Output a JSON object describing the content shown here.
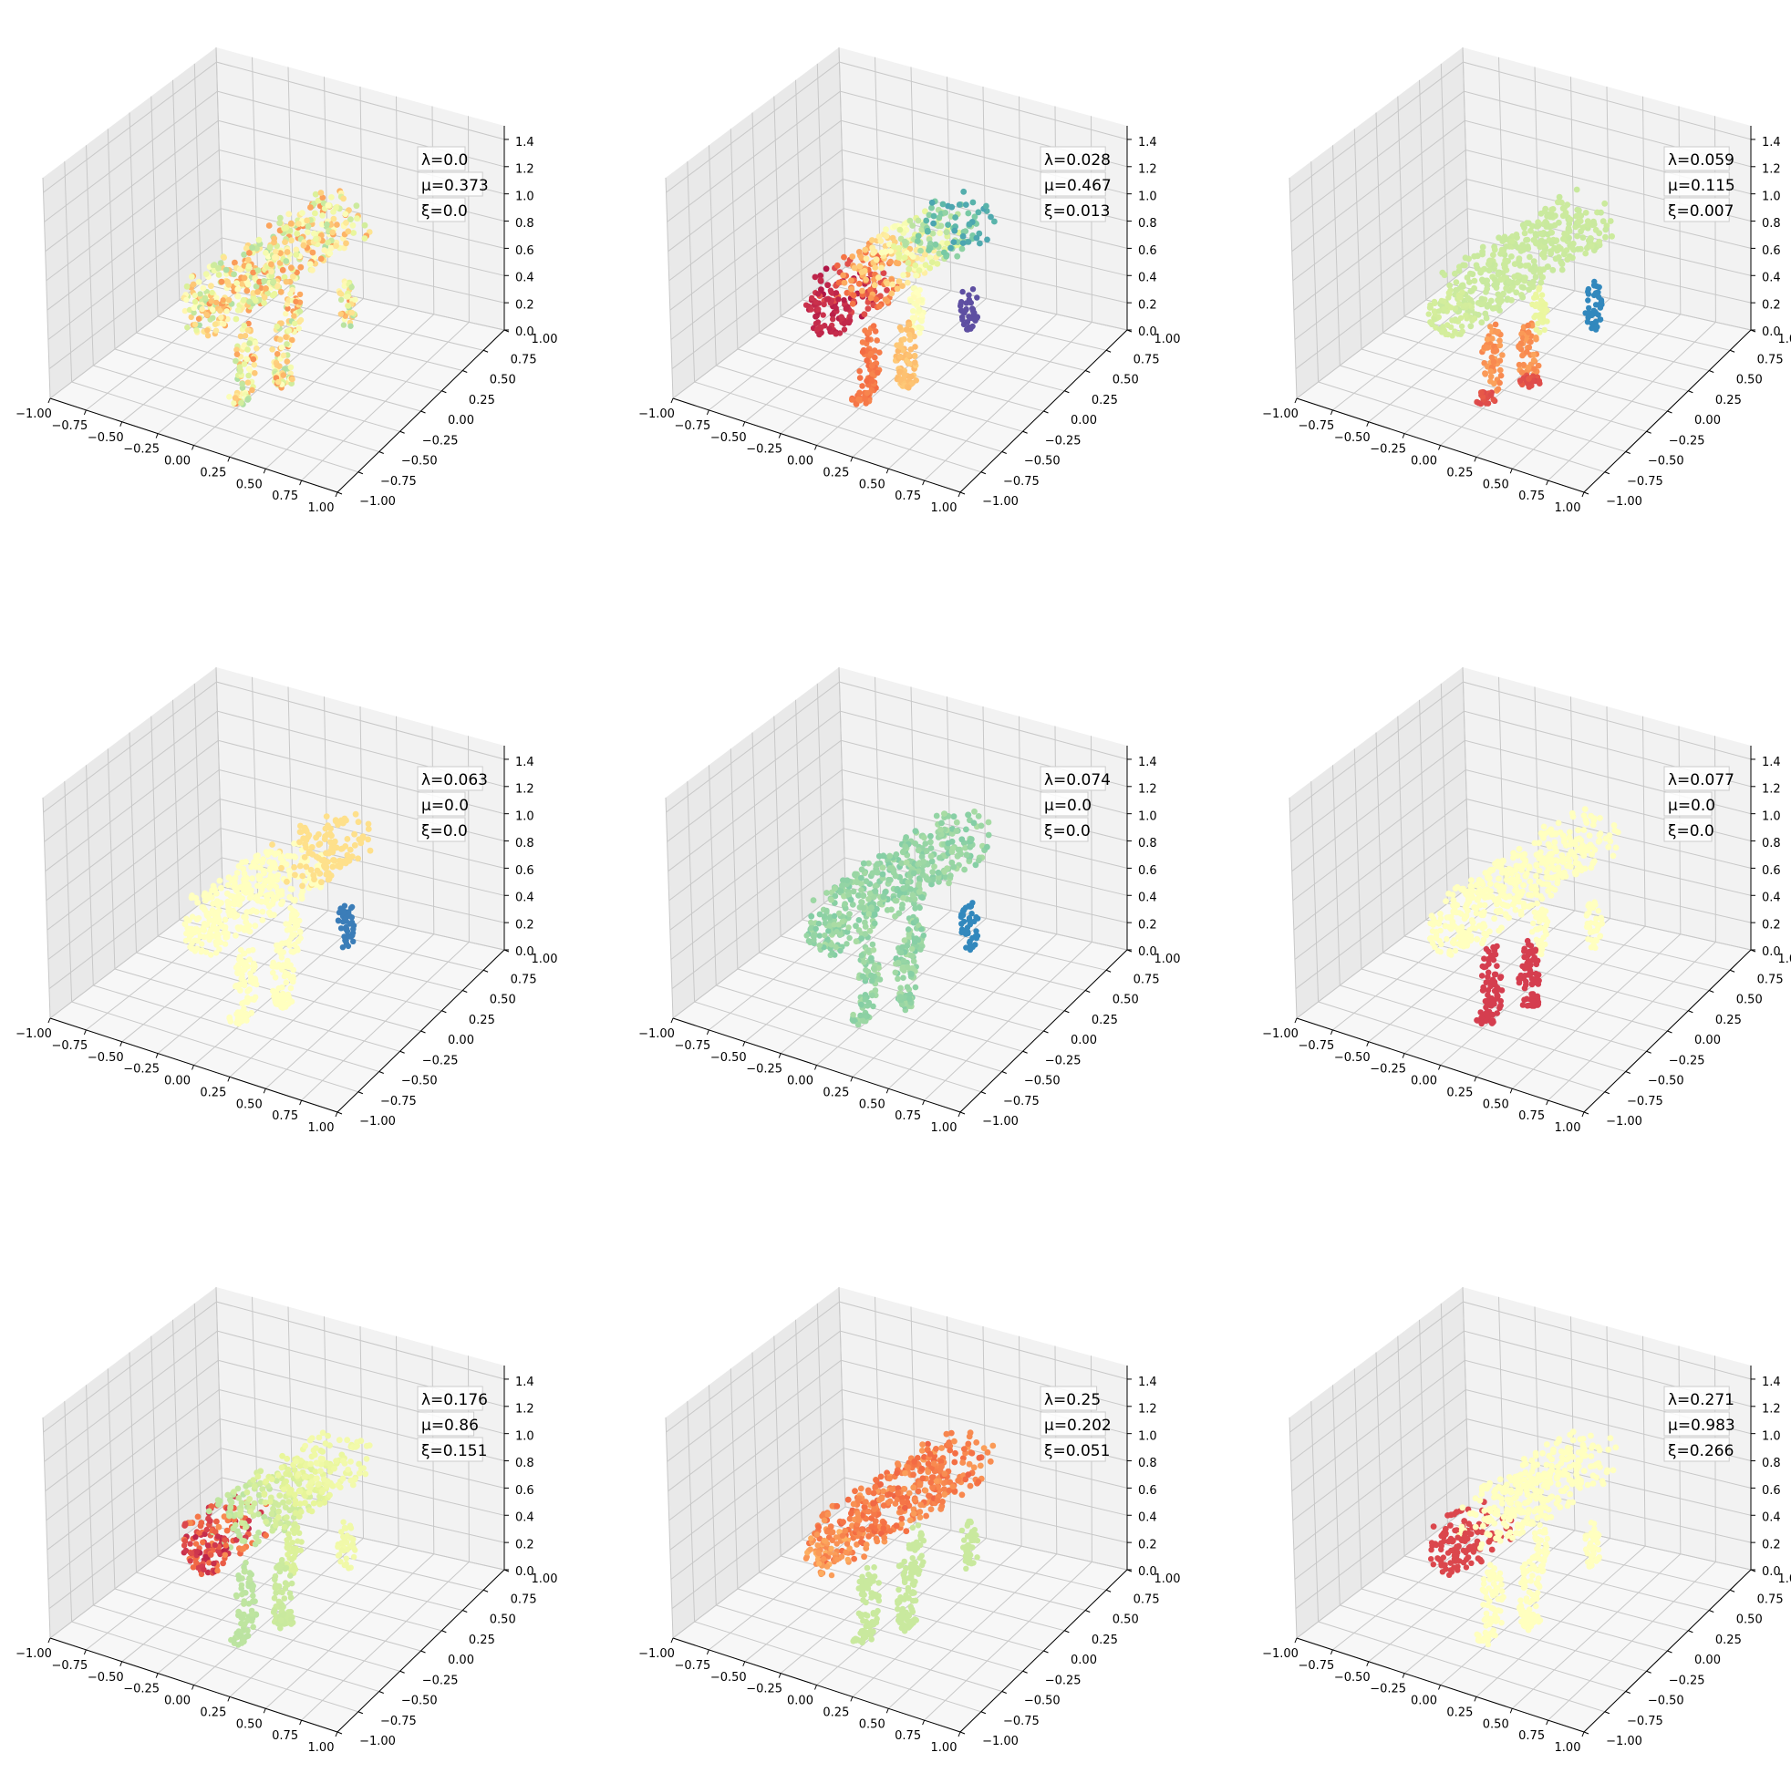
{
  "chart_data": [
    {
      "type": "scatter3d",
      "parameters": {
        "lambda": "λ=0.0",
        "mu": "μ=0.373",
        "xi": "ξ=0.0"
      },
      "colormap": "Spectral",
      "pattern": "noisy",
      "x_ticks": [
        "−1.00",
        "−0.75",
        "−0.50",
        "−0.25",
        "0.00",
        "0.25",
        "0.50",
        "0.75",
        "1.00"
      ],
      "y_ticks": [
        "−1.00",
        "−0.75",
        "−0.50",
        "−0.25",
        "0.00",
        "0.25",
        "0.50",
        "0.75",
        "1.00"
      ],
      "z_ticks": [
        "0.0",
        "0.2",
        "0.4",
        "0.6",
        "0.8",
        "1.0",
        "1.2",
        "1.4"
      ],
      "xlim": [
        -1,
        1
      ],
      "ylim": [
        -1,
        1
      ],
      "zlim": [
        0,
        1.5
      ],
      "grid": true
    },
    {
      "type": "scatter3d",
      "parameters": {
        "lambda": "λ=0.028",
        "mu": "μ=0.467",
        "xi": "ξ=0.013"
      },
      "colormap": "Spectral",
      "pattern": "head-red-to-back-blue",
      "x_ticks": [
        "−1.00",
        "−0.75",
        "−0.50",
        "−0.25",
        "0.00",
        "0.25",
        "0.50",
        "0.75",
        "1.00"
      ],
      "y_ticks": [
        "−1.00",
        "−0.75",
        "−0.50",
        "−0.25",
        "0.00",
        "0.25",
        "0.50",
        "0.75",
        "1.00"
      ],
      "z_ticks": [
        "0.0",
        "0.2",
        "0.4",
        "0.6",
        "0.8",
        "1.0",
        "1.2",
        "1.4"
      ],
      "xlim": [
        -1,
        1
      ],
      "ylim": [
        -1,
        1
      ],
      "zlim": [
        0,
        1.5
      ],
      "grid": true
    },
    {
      "type": "scatter3d",
      "parameters": {
        "lambda": "λ=0.059",
        "mu": "μ=0.115",
        "xi": "ξ=0.007"
      },
      "colormap": "Spectral",
      "pattern": "front-legs-red",
      "x_ticks": [
        "−1.00",
        "−0.75",
        "−0.50",
        "−0.25",
        "0.00",
        "0.25",
        "0.50",
        "0.75",
        "1.00"
      ],
      "y_ticks": [
        "−1.00",
        "−0.75",
        "−0.50",
        "−0.25",
        "0.00",
        "0.25",
        "0.50",
        "0.75",
        "1.00"
      ],
      "z_ticks": [
        "0.0",
        "0.2",
        "0.4",
        "0.6",
        "0.8",
        "1.0",
        "1.2",
        "1.4"
      ],
      "xlim": [
        -1,
        1
      ],
      "ylim": [
        -1,
        1
      ],
      "zlim": [
        0,
        1.5
      ],
      "grid": true
    },
    {
      "type": "scatter3d",
      "parameters": {
        "lambda": "λ=0.063",
        "mu": "μ=0.0",
        "xi": "ξ=0.0"
      },
      "colormap": "Spectral",
      "pattern": "pale-back-legs",
      "x_ticks": [
        "−1.00",
        "−0.75",
        "−0.50",
        "−0.25",
        "0.00",
        "0.25",
        "0.50",
        "0.75",
        "1.00"
      ],
      "y_ticks": [
        "−1.00",
        "−0.75",
        "−0.50",
        "−0.25",
        "0.00",
        "0.25",
        "0.50",
        "0.75",
        "1.00"
      ],
      "z_ticks": [
        "0.0",
        "0.2",
        "0.4",
        "0.6",
        "0.8",
        "1.0",
        "1.2",
        "1.4"
      ],
      "xlim": [
        -1,
        1
      ],
      "ylim": [
        -1,
        1
      ],
      "zlim": [
        0,
        1.5
      ],
      "grid": true
    },
    {
      "type": "scatter3d",
      "parameters": {
        "lambda": "λ=0.074",
        "mu": "μ=0.0",
        "xi": "ξ=0.0"
      },
      "colormap": "Spectral",
      "pattern": "green-body",
      "x_ticks": [
        "−1.00",
        "−0.75",
        "−0.50",
        "−0.25",
        "0.00",
        "0.25",
        "0.50",
        "0.75",
        "1.00"
      ],
      "y_ticks": [
        "−1.00",
        "−0.75",
        "−0.50",
        "−0.25",
        "0.00",
        "0.25",
        "0.50",
        "0.75",
        "1.00"
      ],
      "z_ticks": [
        "0.0",
        "0.2",
        "0.4",
        "0.6",
        "0.8",
        "1.0",
        "1.2",
        "1.4"
      ],
      "xlim": [
        -1,
        1
      ],
      "ylim": [
        -1,
        1
      ],
      "zlim": [
        0,
        1.5
      ],
      "grid": true
    },
    {
      "type": "scatter3d",
      "parameters": {
        "lambda": "λ=0.077",
        "mu": "μ=0.0",
        "xi": "ξ=0.0"
      },
      "colormap": "Spectral",
      "pattern": "pale-front-legs",
      "x_ticks": [
        "−1.00",
        "−0.75",
        "−0.50",
        "−0.25",
        "0.00",
        "0.25",
        "0.50",
        "0.75",
        "1.00"
      ],
      "y_ticks": [
        "−1.00",
        "−0.75",
        "−0.50",
        "−0.25",
        "0.00",
        "0.25",
        "0.50",
        "0.75",
        "1.00"
      ],
      "z_ticks": [
        "0.0",
        "0.2",
        "0.4",
        "0.6",
        "0.8",
        "1.0",
        "1.2",
        "1.4"
      ],
      "xlim": [
        -1,
        1
      ],
      "ylim": [
        -1,
        1
      ],
      "zlim": [
        0,
        1.5
      ],
      "grid": true
    },
    {
      "type": "scatter3d",
      "parameters": {
        "lambda": "λ=0.176",
        "mu": "μ=0.86",
        "xi": "ξ=0.151"
      },
      "colormap": "Spectral",
      "pattern": "head-mixed",
      "x_ticks": [
        "−1.00",
        "−0.75",
        "−0.50",
        "−0.25",
        "0.00",
        "0.25",
        "0.50",
        "0.75",
        "1.00"
      ],
      "y_ticks": [
        "−1.00",
        "−0.75",
        "−0.50",
        "−0.25",
        "0.00",
        "0.25",
        "0.50",
        "0.75",
        "1.00"
      ],
      "z_ticks": [
        "0.0",
        "0.2",
        "0.4",
        "0.6",
        "0.8",
        "1.0",
        "1.2",
        "1.4"
      ],
      "xlim": [
        -1,
        1
      ],
      "ylim": [
        -1,
        1
      ],
      "zlim": [
        0,
        1.5
      ],
      "grid": true
    },
    {
      "type": "scatter3d",
      "parameters": {
        "lambda": "λ=0.25",
        "mu": "μ=0.202",
        "xi": "ξ=0.051"
      },
      "colormap": "Spectral",
      "pattern": "red-back",
      "x_ticks": [
        "−1.00",
        "−0.75",
        "−0.50",
        "−0.25",
        "0.00",
        "0.25",
        "0.50",
        "0.75",
        "1.00"
      ],
      "y_ticks": [
        "−1.00",
        "−0.75",
        "−0.50",
        "−0.25",
        "0.00",
        "0.25",
        "0.50",
        "0.75",
        "1.00"
      ],
      "z_ticks": [
        "0.0",
        "0.2",
        "0.4",
        "0.6",
        "0.8",
        "1.0",
        "1.2",
        "1.4"
      ],
      "xlim": [
        -1,
        1
      ],
      "ylim": [
        -1,
        1
      ],
      "zlim": [
        0,
        1.5
      ],
      "grid": true
    },
    {
      "type": "scatter3d",
      "parameters": {
        "lambda": "λ=0.271",
        "mu": "μ=0.983",
        "xi": "ξ=0.266"
      },
      "colormap": "Spectral",
      "pattern": "pale-head-red",
      "x_ticks": [
        "−1.00",
        "−0.75",
        "−0.50",
        "−0.25",
        "0.00",
        "0.25",
        "0.50",
        "0.75",
        "1.00"
      ],
      "y_ticks": [
        "−1.00",
        "−0.75",
        "−0.50",
        "−0.25",
        "0.00",
        "0.25",
        "0.50",
        "0.75",
        "1.00"
      ],
      "z_ticks": [
        "0.0",
        "0.2",
        "0.4",
        "0.6",
        "0.8",
        "1.0",
        "1.2",
        "1.4"
      ],
      "xlim": [
        -1,
        1
      ],
      "ylim": [
        -1,
        1
      ],
      "zlim": [
        0,
        1.5
      ],
      "grid": true
    }
  ],
  "colors": {
    "pane_left": "#e9e9e9",
    "pane_back": "#f2f2f2",
    "pane_floor": "#f7f7f7",
    "grid": "#c8c8c8",
    "spectral": [
      "#9e0142",
      "#d53e4f",
      "#f46d43",
      "#fdae61",
      "#fee08b",
      "#ffffbf",
      "#e6f598",
      "#abdda4",
      "#66c2a5",
      "#3288bd",
      "#5e4fa2"
    ]
  }
}
